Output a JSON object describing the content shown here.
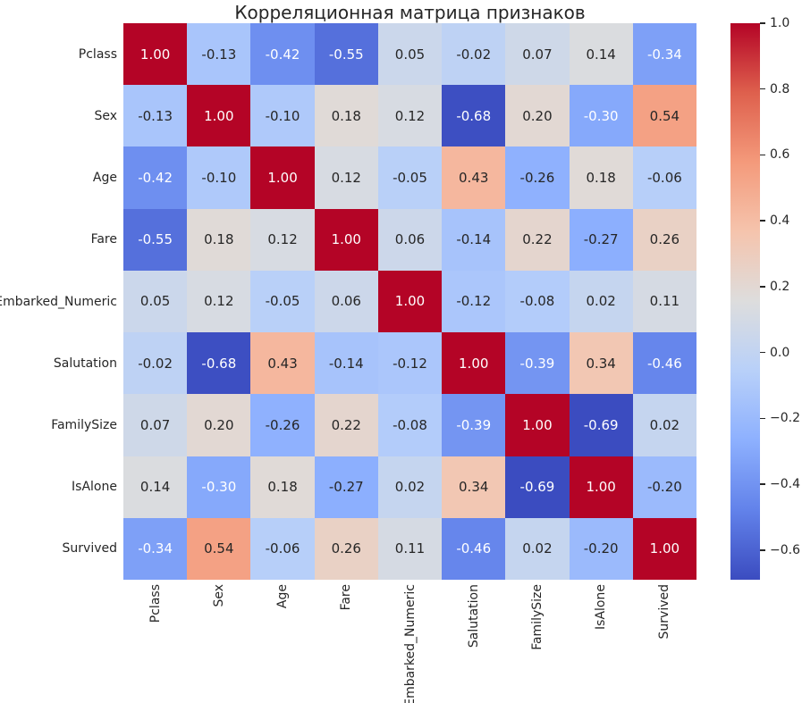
{
  "chart_data": {
    "type": "heatmap",
    "title": "Корреляционная матрица признаков",
    "categories": [
      "Pclass",
      "Sex",
      "Age",
      "Fare",
      "Embarked_Numeric",
      "Salutation",
      "FamilySize",
      "IsAlone",
      "Survived"
    ],
    "matrix": [
      [
        1.0,
        -0.13,
        -0.42,
        -0.55,
        0.05,
        -0.02,
        0.07,
        0.14,
        -0.34
      ],
      [
        -0.13,
        1.0,
        -0.1,
        0.18,
        0.12,
        -0.68,
        0.2,
        -0.3,
        0.54
      ],
      [
        -0.42,
        -0.1,
        1.0,
        0.12,
        -0.05,
        0.43,
        -0.26,
        0.18,
        -0.06
      ],
      [
        -0.55,
        0.18,
        0.12,
        1.0,
        0.06,
        -0.14,
        0.22,
        -0.27,
        0.26
      ],
      [
        0.05,
        0.12,
        -0.05,
        0.06,
        1.0,
        -0.12,
        -0.08,
        0.02,
        0.11
      ],
      [
        -0.02,
        -0.68,
        0.43,
        -0.14,
        -0.12,
        1.0,
        -0.39,
        0.34,
        -0.46
      ],
      [
        0.07,
        0.2,
        -0.26,
        0.22,
        -0.08,
        -0.39,
        1.0,
        -0.69,
        0.02
      ],
      [
        0.14,
        -0.3,
        0.18,
        -0.27,
        0.02,
        0.34,
        -0.69,
        1.0,
        -0.2
      ],
      [
        -0.34,
        0.54,
        -0.06,
        0.26,
        0.11,
        -0.46,
        0.02,
        -0.2,
        1.0
      ]
    ],
    "annotation_decimals": 2,
    "colormap": "coolwarm",
    "vmin": -0.69,
    "vmax": 1.0,
    "colormap_anchors_rgb": [
      [
        59,
        76,
        192
      ],
      [
        98,
        130,
        234
      ],
      [
        141,
        176,
        254
      ],
      [
        184,
        208,
        249
      ],
      [
        221,
        221,
        221
      ],
      [
        245,
        196,
        173
      ],
      [
        244,
        154,
        123
      ],
      [
        222,
        96,
        77
      ],
      [
        180,
        4,
        38
      ]
    ],
    "colorbar": {
      "position": "right",
      "ticks": [
        {
          "value": 1.0,
          "label": "1.0"
        },
        {
          "value": 0.8,
          "label": "0.8"
        },
        {
          "value": 0.6,
          "label": "0.6"
        },
        {
          "value": 0.4,
          "label": "0.4"
        },
        {
          "value": 0.2,
          "label": "0.2"
        },
        {
          "value": 0.0,
          "label": "0.0"
        },
        {
          "value": -0.2,
          "label": "−0.2"
        },
        {
          "value": -0.4,
          "label": "−0.4"
        },
        {
          "value": -0.6,
          "label": "−0.6"
        }
      ]
    },
    "grid": false,
    "background_color": "#ffffff",
    "text_color": "#262626",
    "annotation_dark_text_color": "#262626",
    "annotation_light_text_color": "#ffffff"
  }
}
